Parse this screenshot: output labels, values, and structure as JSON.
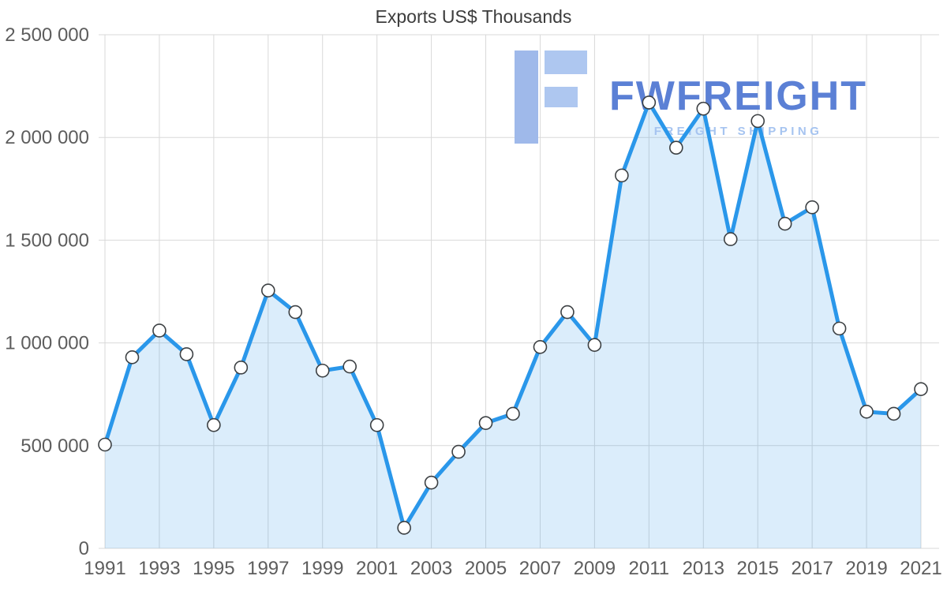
{
  "title": "Exports US$ Thousands",
  "watermark": {
    "brand": "FWFREIGHT",
    "tagline": "FREIGHT SHIPPING",
    "brand_color": "#5b80d5",
    "tagline_color": "#a6c4f0",
    "logo_color_primary": "#9fb9ea",
    "logo_color_secondary": "#aec7f0"
  },
  "chart_data": {
    "type": "area",
    "title": "Exports US$ Thousands",
    "x": [
      1991,
      1992,
      1993,
      1994,
      1995,
      1996,
      1997,
      1998,
      1999,
      2000,
      2001,
      2002,
      2003,
      2004,
      2005,
      2006,
      2007,
      2008,
      2009,
      2010,
      2011,
      2012,
      2013,
      2014,
      2015,
      2016,
      2017,
      2018,
      2019,
      2020,
      2021
    ],
    "values": [
      505000,
      930000,
      1060000,
      945000,
      600000,
      880000,
      1255000,
      1150000,
      865000,
      885000,
      600000,
      100000,
      320000,
      470000,
      610000,
      655000,
      980000,
      1150000,
      990000,
      1815000,
      2170000,
      1950000,
      2140000,
      1505000,
      2080000,
      1580000,
      1660000,
      1070000,
      665000,
      655000,
      775000
    ],
    "ylim": [
      0,
      2500000
    ],
    "y_ticks": [
      0,
      500000,
      1000000,
      1500000,
      2000000,
      2500000
    ],
    "y_tick_labels": [
      "0",
      "500 000",
      "1 000 000",
      "1 500 000",
      "2 000 000",
      "2 500 000"
    ],
    "x_ticks": [
      1991,
      1993,
      1995,
      1997,
      1999,
      2001,
      2003,
      2005,
      2007,
      2009,
      2011,
      2013,
      2015,
      2017,
      2019,
      2021
    ],
    "x_tick_labels": [
      "1991",
      "1993",
      "1995",
      "1997",
      "1999",
      "2001",
      "2003",
      "2005",
      "2007",
      "2009",
      "2011",
      "2013",
      "2015",
      "2017",
      "2019",
      "2021"
    ],
    "line_color": "#2a97ea",
    "fill_opacity": 0.17,
    "grid_color": "#d9d9d9",
    "marker_fill": "#ffffff",
    "marker_stroke": "#3c4043",
    "legend": "off",
    "grid": "on"
  }
}
